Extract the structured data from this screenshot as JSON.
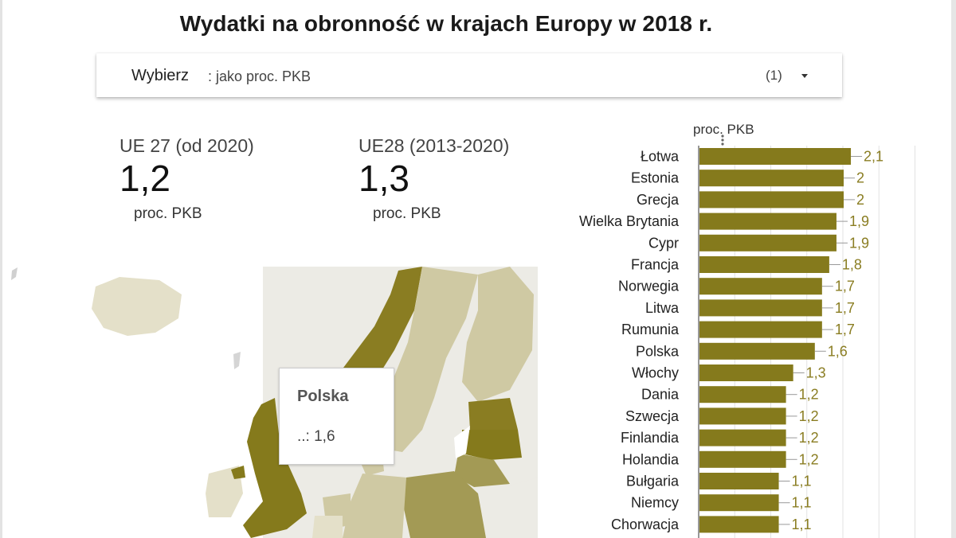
{
  "title": "Wydatki na obronność w krajach Europy w 2018 r.",
  "selector": {
    "label": "Wybierz",
    "value": ": jako proc. PKB",
    "count": "(1)"
  },
  "kpis": [
    {
      "label": "UE 27 (od 2020)",
      "value": "1,2",
      "unit": "proc. PKB"
    },
    {
      "label": "UE28 (2013-2020)",
      "value": "1,3",
      "unit": "proc. PKB"
    }
  ],
  "tooltip": {
    "country": "Polska",
    "value": "..: 1,6"
  },
  "colors": {
    "bar": "#857a1c",
    "label": "#8a7d22",
    "map_dark": "#857a1c",
    "map_mid": "#a39a55",
    "map_light": "#cfc9a3",
    "map_pale": "#e4e0c9"
  },
  "chart_data": {
    "type": "bar",
    "orientation": "horizontal",
    "ylabel": "proc. PKB",
    "categories": [
      "Łotwa",
      "Estonia",
      "Grecja",
      "Wielka Brytania",
      "Cypr",
      "Francja",
      "Norwegia",
      "Litwa",
      "Rumunia",
      "Polska",
      "Włochy",
      "Dania",
      "Szwecja",
      "Finlandia",
      "Holandia",
      "Bułgaria",
      "Niemcy",
      "Chorwacja"
    ],
    "values": [
      2.1,
      2.0,
      2.0,
      1.9,
      1.9,
      1.8,
      1.7,
      1.7,
      1.7,
      1.6,
      1.3,
      1.2,
      1.2,
      1.2,
      1.2,
      1.1,
      1.1,
      1.1
    ],
    "value_labels": [
      "2,1",
      "2",
      "2",
      "1,9",
      "1,9",
      "1,8",
      "1,7",
      "1,7",
      "1,7",
      "1,6",
      "1,3",
      "1,2",
      "1,2",
      "1,2",
      "1,2",
      "1,1",
      "1,1",
      "1,1"
    ],
    "xlim": [
      0,
      3
    ],
    "grid": true
  }
}
